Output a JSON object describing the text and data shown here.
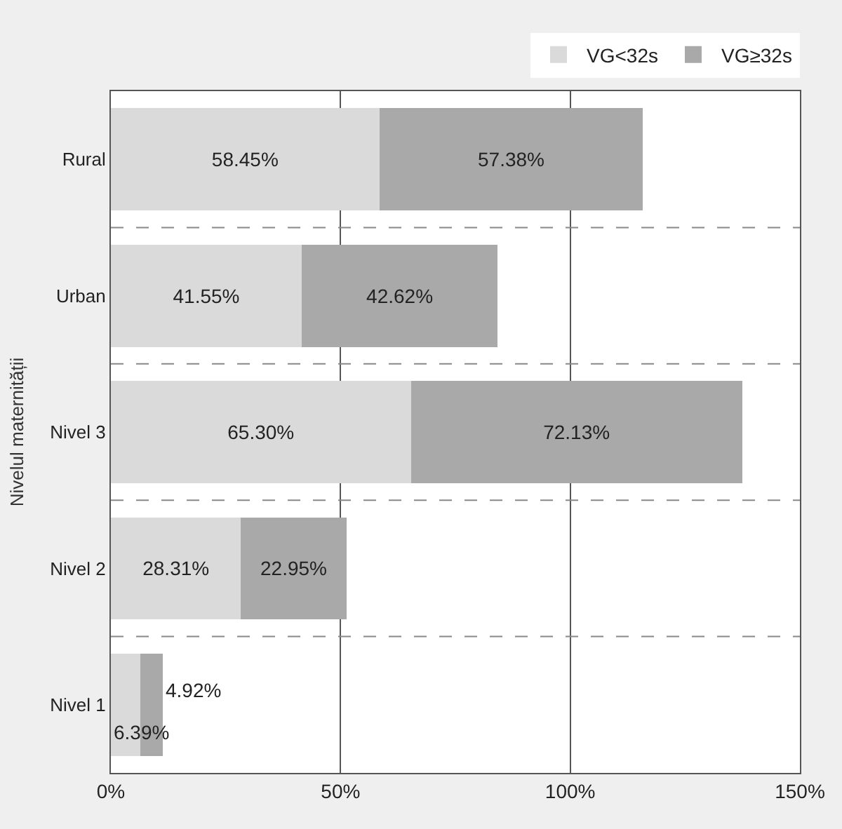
{
  "chart_data": {
    "type": "bar",
    "orientation": "horizontal",
    "stacked": true,
    "ylabel": "Nivelul maternității",
    "categories": [
      "Rural",
      "Urban",
      "Nivel 3",
      "Nivel 2",
      "Nivel 1"
    ],
    "series": [
      {
        "name": "VG<32s",
        "color": "#dadada",
        "values": [
          58.45,
          41.55,
          65.3,
          28.31,
          6.39
        ],
        "value_labels": [
          "58.45%",
          "41.55%",
          "65.30%",
          "28.31%",
          "6.39%"
        ]
      },
      {
        "name": "VG≥32s",
        "color": "#a9a9a9",
        "values": [
          57.38,
          42.62,
          72.13,
          22.95,
          4.92
        ],
        "value_labels": [
          "57.38%",
          "42.62%",
          "72.13%",
          "22.95%",
          "4.92%"
        ]
      }
    ],
    "xlim": [
      0,
      150
    ],
    "xticks": [
      {
        "value": 0,
        "label": "0%"
      },
      {
        "value": 50,
        "label": "50%"
      },
      {
        "value": 100,
        "label": "100%"
      },
      {
        "value": 150,
        "label": "150%"
      }
    ],
    "grid": "x",
    "legend": "top right"
  }
}
